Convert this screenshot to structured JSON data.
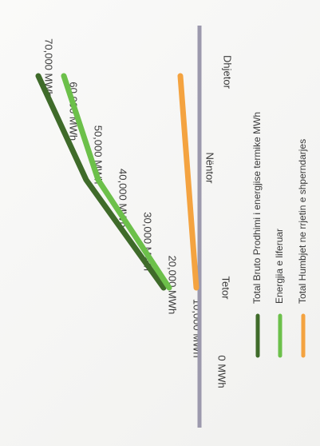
{
  "chart_data": {
    "type": "line",
    "orientation": "rotated-90-cw",
    "categories": [
      "Tetor",
      "Nëntor",
      "Dhjetor"
    ],
    "y_ticks": [
      "70,000 MWh",
      "60,000 MWh",
      "50,000 MWh",
      "40,000 MWh",
      "30,000 MWh",
      "20,000 MWh",
      "10,000 MWh",
      "0 MWh"
    ],
    "ylim": [
      0,
      70000
    ],
    "grid": false,
    "legend_position": "bottom",
    "series": [
      {
        "name": "Total Bruto Prodhimi i energjise termike MWh",
        "color": "#3f6b2a",
        "values": [
          17000,
          43000,
          67000
        ]
      },
      {
        "name": "Energjia e liferuar",
        "color": "#6cc04a",
        "values": [
          15000,
          40000,
          62000
        ]
      },
      {
        "name": "Total Humbjet ne rrjetin e shperndarjes",
        "color": "#f4a340",
        "values": [
          3000,
          null,
          8000
        ]
      }
    ]
  }
}
